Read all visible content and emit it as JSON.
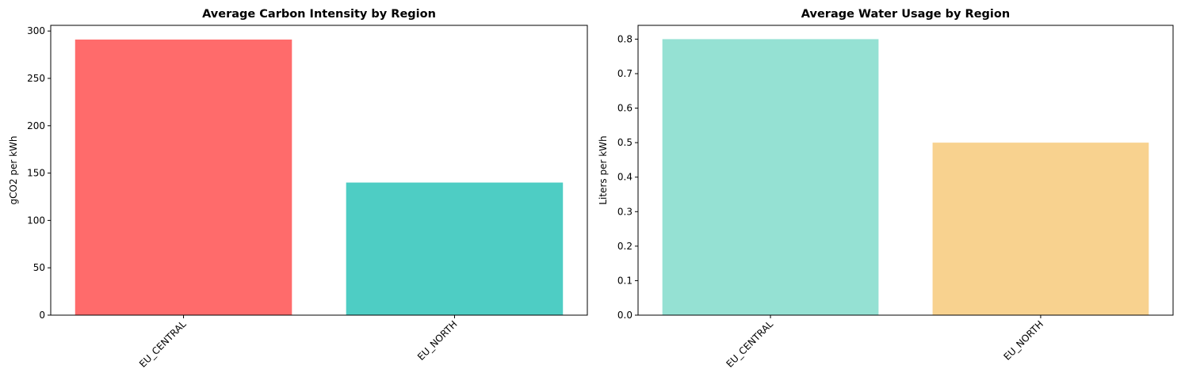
{
  "chart_data": [
    {
      "type": "bar",
      "title": "Average Carbon Intensity by Region",
      "xlabel": "",
      "ylabel": "gCO2 per kWh",
      "categories": [
        "EU_CENTRAL",
        "EU_NORTH"
      ],
      "values": [
        291,
        140
      ],
      "colors": [
        "#ff6b6b",
        "#4ecdc4"
      ],
      "ylim": [
        0,
        306
      ],
      "yticks": [
        0,
        50,
        100,
        150,
        200,
        250,
        300
      ],
      "ytick_labels": [
        "0",
        "50",
        "100",
        "150",
        "200",
        "250",
        "300"
      ],
      "xtick_rotation": 45,
      "grid": false,
      "legend": "none"
    },
    {
      "type": "bar",
      "title": "Average Water Usage by Region",
      "xlabel": "",
      "ylabel": "Liters per kWh",
      "categories": [
        "EU_CENTRAL",
        "EU_NORTH"
      ],
      "values": [
        0.8,
        0.5
      ],
      "colors": [
        "#95e1d3",
        "#f8d28f"
      ],
      "ylim": [
        0,
        0.84
      ],
      "yticks": [
        0,
        0.1,
        0.2,
        0.3,
        0.4,
        0.5,
        0.6,
        0.7,
        0.8
      ],
      "ytick_labels": [
        "0.0",
        "0.1",
        "0.2",
        "0.3",
        "0.4",
        "0.5",
        "0.6",
        "0.7",
        "0.8"
      ],
      "xtick_rotation": 45,
      "grid": false,
      "legend": "none"
    }
  ]
}
